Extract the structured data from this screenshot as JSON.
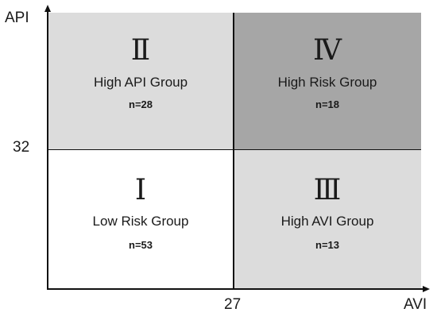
{
  "axes": {
    "y_label": "API",
    "x_label": "AVI",
    "y_threshold": "32",
    "x_threshold": "27"
  },
  "quadrants": {
    "q1": {
      "numeral": "Ⅰ",
      "label": "Low Risk Group",
      "count": "n=53",
      "color": "#ffffff"
    },
    "q2": {
      "numeral": "Ⅱ",
      "label": "High API Group",
      "count": "n=28",
      "color": "#dcdcdc"
    },
    "q3": {
      "numeral": "Ⅲ",
      "label": "High AVI Group",
      "count": "n=13",
      "color": "#dcdcdc"
    },
    "q4": {
      "numeral": "Ⅳ",
      "label": "High Risk Group",
      "count": "n=18",
      "color": "#a6a6a6"
    }
  }
}
